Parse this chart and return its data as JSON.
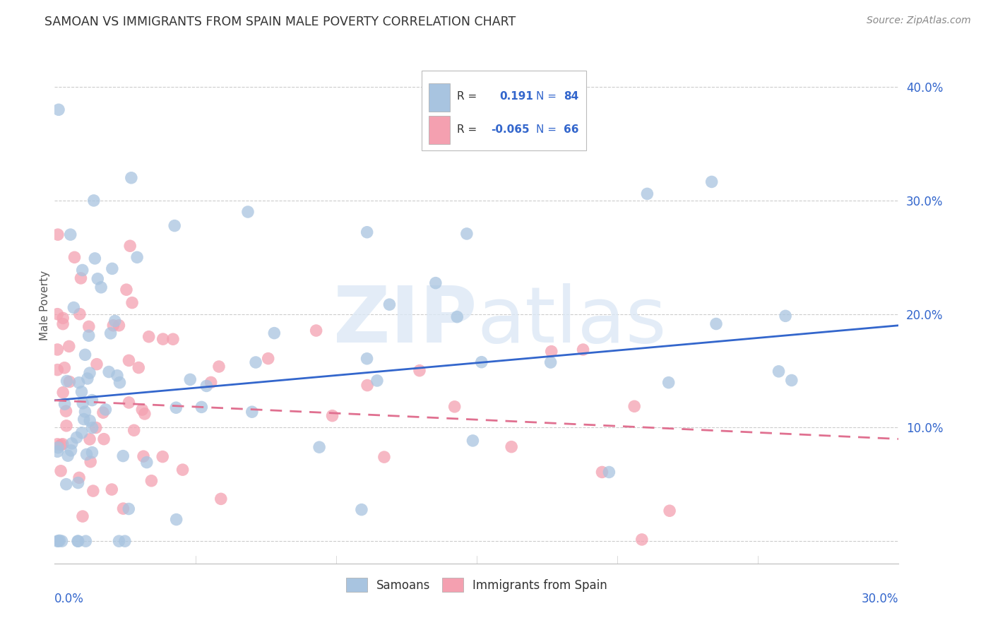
{
  "title": "SAMOAN VS IMMIGRANTS FROM SPAIN MALE POVERTY CORRELATION CHART",
  "source": "Source: ZipAtlas.com",
  "ylabel": "Male Poverty",
  "xrange": [
    0.0,
    0.3
  ],
  "yrange": [
    -0.02,
    0.435
  ],
  "samoans_R": 0.191,
  "samoans_N": 84,
  "spain_R": -0.065,
  "spain_N": 66,
  "samoans_color": "#a8c4e0",
  "spain_color": "#f4a0b0",
  "samoans_line_color": "#3366cc",
  "spain_line_color": "#e07090",
  "legend_label_samoans": "Samoans",
  "legend_label_spain": "Immigrants from Spain",
  "background_color": "#ffffff",
  "grid_color": "#cccccc",
  "ytick_vals": [
    0.0,
    0.1,
    0.2,
    0.3,
    0.4
  ],
  "ytick_labels": [
    "",
    "10.0%",
    "20.0%",
    "30.0%",
    "40.0%"
  ],
  "sam_line_x0": 0.0,
  "sam_line_y0": 0.124,
  "sam_line_x1": 0.3,
  "sam_line_y1": 0.19,
  "sp_line_x0": 0.0,
  "sp_line_y0": 0.124,
  "sp_line_x1": 0.3,
  "sp_line_y1": 0.09
}
